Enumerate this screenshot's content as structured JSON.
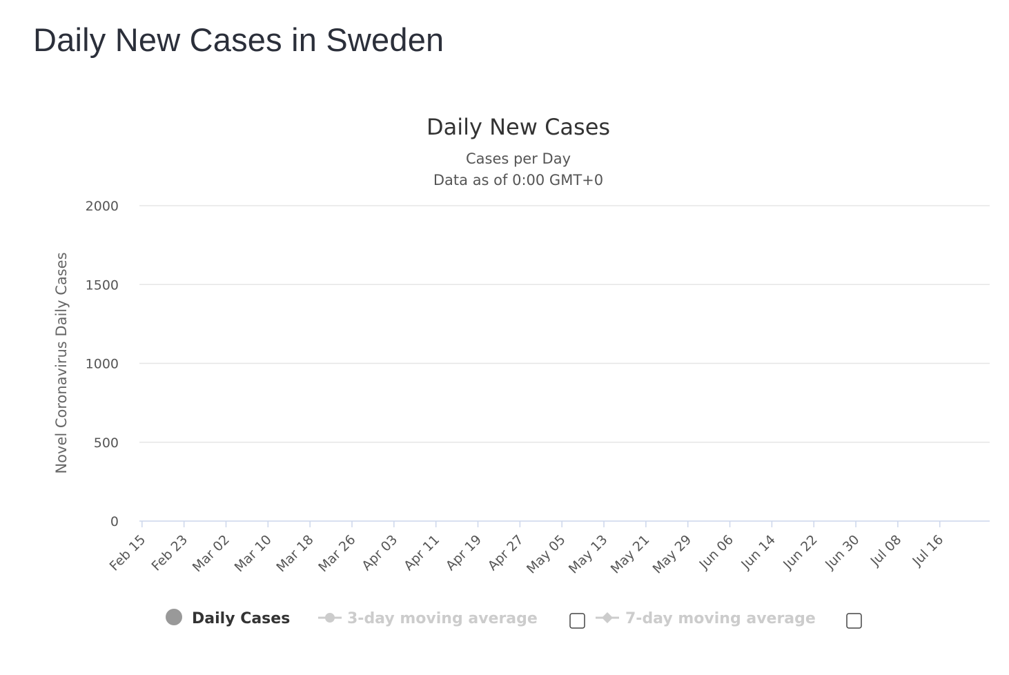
{
  "page": {
    "title": "Daily New Cases in Sweden"
  },
  "chart_data": {
    "type": "bar",
    "title": "Daily New Cases",
    "subtitle_lines": [
      "Cases per Day",
      "Data as of 0:00 GMT+0"
    ],
    "ylabel": "Novel Coronavirus Daily Cases",
    "xlabel": "",
    "ylim": [
      0,
      2000
    ],
    "yticks": [
      0,
      500,
      1000,
      1500,
      2000
    ],
    "grid": true,
    "x_tick_labels": [
      "Feb 15",
      "Feb 23",
      "Mar 02",
      "Mar 10",
      "Mar 18",
      "Mar 26",
      "Apr 03",
      "Apr 11",
      "Apr 19",
      "Apr 27",
      "May 05",
      "May 13",
      "May 21",
      "May 29",
      "Jun 06",
      "Jun 14",
      "Jun 22",
      "Jun 30",
      "Jul 08",
      "Jul 16"
    ],
    "x_tick_every": 8,
    "series": [
      {
        "name": "Daily Cases",
        "color": "#999999",
        "values": [
          0,
          0,
          0,
          0,
          0,
          0,
          0,
          0,
          0,
          0,
          0,
          0,
          0,
          0,
          0,
          0,
          0,
          0,
          0,
          0,
          0,
          0,
          0,
          0,
          0,
          0,
          0,
          0,
          0,
          0,
          0,
          0,
          0,
          0,
          0,
          0,
          0,
          0,
          0,
          0,
          0,
          0,
          0,
          0,
          0,
          0,
          0,
          0,
          0,
          0,
          0,
          0,
          0,
          0,
          0,
          0,
          0,
          0,
          0,
          0,
          0,
          0,
          0,
          0,
          0,
          0,
          0,
          0,
          0,
          0,
          0,
          0,
          0,
          0,
          0,
          0,
          0,
          0,
          0,
          0,
          0,
          0,
          0,
          0,
          0,
          0,
          0,
          0,
          0,
          0,
          0,
          0,
          0,
          0,
          0,
          0,
          0,
          0,
          0,
          0,
          0,
          0,
          0,
          0,
          0,
          0,
          0,
          0,
          0,
          0,
          0,
          0,
          0,
          0,
          0,
          0,
          0,
          0,
          0,
          0,
          0,
          0,
          0,
          0,
          0,
          0,
          0,
          0,
          0,
          0,
          0,
          0,
          0,
          0,
          0,
          0,
          0,
          0,
          0,
          0,
          0,
          0,
          0,
          0,
          0,
          0,
          0,
          0,
          0,
          0,
          0,
          0,
          0,
          0,
          0,
          0,
          0,
          0,
          0,
          0,
          0,
          0
        ]
      }
    ],
    "legend": {
      "placement": "bottom",
      "items": [
        {
          "label": "Daily Cases",
          "active": true
        },
        {
          "label": "3-day moving average",
          "active": false
        },
        {
          "label": "7-day moving average",
          "active": false
        }
      ]
    }
  }
}
